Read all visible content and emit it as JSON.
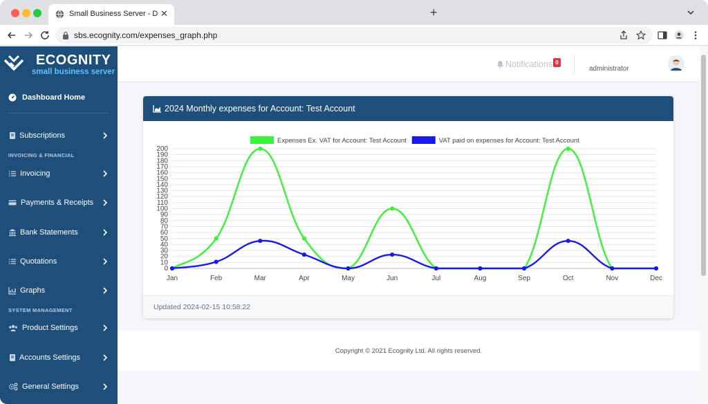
{
  "browser": {
    "tab_title": "Small Business Server - Dashb",
    "url": "sbs.ecognity.com/expenses_graph.php"
  },
  "brand": {
    "name": "ECOGNITY",
    "subtitle": "small business server"
  },
  "sidebar": {
    "dashboard": "Dashboard Home",
    "items": [
      {
        "label": "Subscriptions",
        "icon": "book-icon"
      },
      {
        "label": "Invoicing",
        "icon": "list-icon"
      },
      {
        "label": "Payments & Receipts",
        "icon": "card-icon"
      },
      {
        "label": "Bank Statements",
        "icon": "bank-icon"
      },
      {
        "label": "Quotations",
        "icon": "list-icon"
      },
      {
        "label": "Graphs",
        "icon": "chart-icon"
      },
      {
        "label": "Product Settings",
        "icon": "users-icon"
      },
      {
        "label": "Accounts Settings",
        "icon": "book-icon"
      },
      {
        "label": "General Settings",
        "icon": "cogs-icon"
      }
    ],
    "sections": {
      "invoicing": "INVOICING & FINANCIAL",
      "system": "SYSTEM MANAGEMENT"
    }
  },
  "header": {
    "notifications_label": "Notifications",
    "notifications_count": "0",
    "username": "administrator"
  },
  "card": {
    "title": "2024 Monthly expenses for Account: Test Account",
    "updated": "Updated 2024-02-15 10:58:22"
  },
  "footer": {
    "copyright": "Copyright © 2021 Ecognity Ltd. All rights reserved."
  },
  "colors": {
    "series1": "#3cf23c",
    "series2": "#1a1ae6",
    "sidebar_bg": "#1e4f7a"
  },
  "chart_data": {
    "type": "line",
    "categories": [
      "Jan",
      "Feb",
      "Mar",
      "Apr",
      "May",
      "Jun",
      "Jul",
      "Aug",
      "Sep",
      "Oct",
      "Nov",
      "Dec"
    ],
    "series": [
      {
        "name": "Expenses Ex. VAT for Account: Test Account",
        "values": [
          0,
          50,
          200,
          50,
          0,
          100,
          0,
          0,
          0,
          200,
          0,
          0
        ]
      },
      {
        "name": "VAT paid on expenses for Account: Test Account",
        "values": [
          0,
          11,
          46,
          23,
          0,
          23,
          0,
          0,
          0,
          46,
          0,
          0
        ]
      }
    ],
    "ylim": [
      0,
      200
    ],
    "yticks": [
      0,
      10,
      20,
      30,
      40,
      50,
      60,
      70,
      80,
      90,
      100,
      110,
      120,
      130,
      140,
      150,
      160,
      170,
      180,
      190,
      200
    ],
    "grid": true,
    "legend": "top-center",
    "curve": "smooth"
  }
}
